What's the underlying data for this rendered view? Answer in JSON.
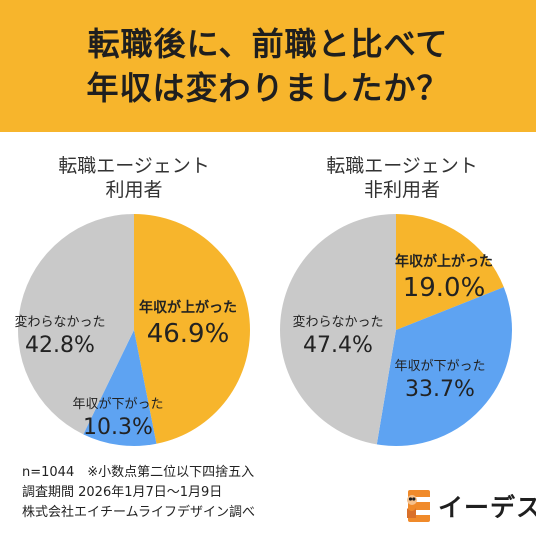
{
  "header": {
    "title_line1": "転職後に、前職と比べて",
    "title_line2": "年収は変わりましたか？"
  },
  "colors": {
    "header_bg": "#f7b52c",
    "increased": "#f7b52c",
    "decreased": "#5ea3f2",
    "unchanged": "#c9c9c9"
  },
  "chart_data": [
    {
      "type": "pie",
      "title": "転職エージェント\n利用者",
      "title_lines": [
        "転職エージェント",
        "利用者"
      ],
      "slices": [
        {
          "label": "年収が上がった",
          "value": 46.9,
          "display": "46.9%",
          "color": "#f7b52c"
        },
        {
          "label": "年収が下がった",
          "value": 10.3,
          "display": "10.3%",
          "color": "#5ea3f2"
        },
        {
          "label": "変わらなかった",
          "value": 42.8,
          "display": "42.8%",
          "color": "#c9c9c9"
        }
      ]
    },
    {
      "type": "pie",
      "title": "転職エージェント\n非利用者",
      "title_lines": [
        "転職エージェント",
        "非利用者"
      ],
      "slices": [
        {
          "label": "年収が上がった",
          "value": 19.0,
          "display": "19.0%",
          "color": "#f7b52c"
        },
        {
          "label": "年収が下がった",
          "value": 33.7,
          "display": "33.7%",
          "color": "#5ea3f2"
        },
        {
          "label": "変わらなかった",
          "value": 47.4,
          "display": "47.4%",
          "color": "#c9c9c9"
        }
      ]
    }
  ],
  "footer": {
    "line1": "n=1044　※小数点第二位以下四捨五入",
    "line2": "調査期間 2026年1月7日〜1月9日",
    "line3": "株式会社エイチームライフデザイン調べ"
  },
  "logo": {
    "text": "イーデス",
    "icon": "owl-e-logo-icon"
  }
}
